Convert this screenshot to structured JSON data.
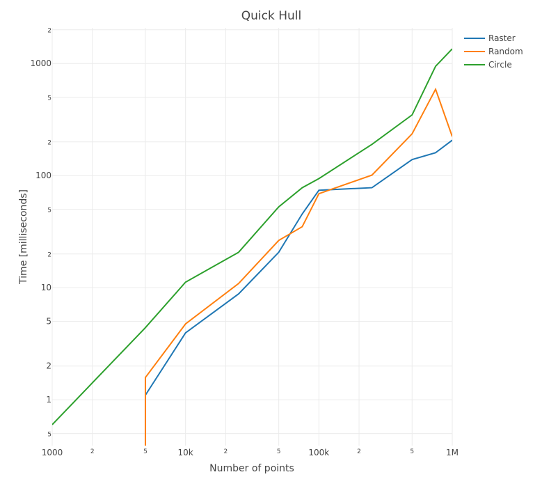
{
  "chart_data": {
    "type": "line",
    "title": "Quick Hull",
    "x_label": "Number of points",
    "y_label": "Time [milliseconds]",
    "log_x": true,
    "log_y": true,
    "grid": true,
    "legend": "top-right",
    "xlim": [
      1000,
      1000000
    ],
    "ylim": [
      0.39,
      2080
    ],
    "xticks": [
      1000,
      {
        "value": 2000,
        "label": "2"
      },
      {
        "value": 5000,
        "label": "5"
      },
      {
        "value": 10000,
        "label": "10k"
      },
      {
        "value": 20000,
        "label": "2"
      },
      {
        "value": 50000,
        "label": "5"
      },
      {
        "value": 100000,
        "label": "100k"
      },
      {
        "value": 200000,
        "label": "2"
      },
      {
        "value": 500000,
        "label": "5"
      },
      {
        "value": 1000000,
        "label": "1M"
      }
    ],
    "yticks": [
      {
        "value": 0.5,
        "label": "5"
      },
      1,
      2,
      5,
      10,
      {
        "value": 20,
        "label": "2"
      },
      {
        "value": 50,
        "label": "5"
      },
      100,
      {
        "value": 200,
        "label": "2"
      },
      {
        "value": 500,
        "label": "5"
      },
      1000,
      {
        "value": 2000,
        "label": "2"
      }
    ],
    "series": [
      {
        "name": "Raster",
        "color": "#1f77b4",
        "x": [
          5000,
          10000,
          25000,
          50000,
          75000,
          100000,
          250000,
          500000,
          750000,
          1000000
        ],
        "values": [
          1.1,
          3.95,
          8.8,
          20.7,
          45.5,
          74,
          78,
          139,
          160,
          207
        ]
      },
      {
        "name": "Random",
        "color": "#ff7f0e",
        "x": [
          5000,
          5000,
          10000,
          25000,
          50000,
          75000,
          100000,
          250000,
          500000,
          750000,
          1000000
        ],
        "values": [
          0.2,
          1.58,
          4.75,
          10.9,
          26.4,
          35,
          69,
          101,
          236,
          589,
          223
        ]
      },
      {
        "name": "Circle",
        "color": "#2ca02c",
        "x": [
          1000,
          5000,
          10000,
          25000,
          50000,
          75000,
          100000,
          250000,
          500000,
          750000,
          1000000
        ],
        "values": [
          0.6,
          4.4,
          11.2,
          20.7,
          52.6,
          78,
          94,
          190,
          348,
          945,
          1350
        ]
      }
    ]
  }
}
